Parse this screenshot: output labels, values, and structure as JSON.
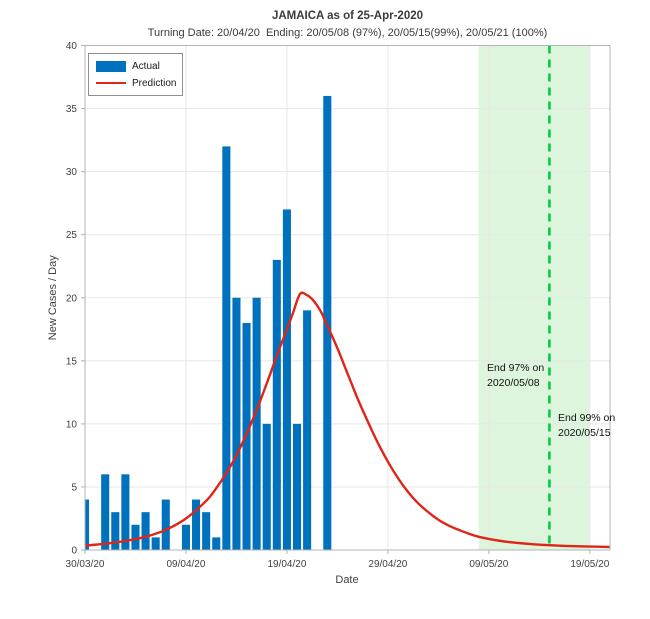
{
  "header": {
    "title": "JAMAICA as of 25-Apr-2020",
    "subtitle": "Turning Date: 20/04/20  Ending: 20/05/08 (97%), 20/05/15(99%), 20/05/21 (100%)"
  },
  "legend": {
    "items": [
      {
        "label": "Actual",
        "type": "bar",
        "color": "#0072BD"
      },
      {
        "label": "Prediction",
        "type": "line",
        "color": "#E02418"
      }
    ]
  },
  "axes": {
    "xlabel": "Date",
    "ylabel": "New Cases / Day"
  },
  "annotations": {
    "end97": {
      "line1": "End 97% on",
      "line2": "2020/05/08"
    },
    "end99": {
      "line1": "End 99% on",
      "line2": "2020/05/15"
    }
  },
  "chart_data": {
    "type": "bar+line",
    "title": "JAMAICA as of 25-Apr-2020",
    "subtitle": "Turning Date: 20/04/20  Ending: 20/05/08 (97%), 20/05/15(99%), 20/05/21 (100%)",
    "xlabel": "Date",
    "ylabel": "New Cases / Day",
    "ylim": [
      0,
      40
    ],
    "yticks": [
      0,
      5,
      10,
      15,
      20,
      25,
      30,
      35,
      40
    ],
    "x_axis_days_total": 52,
    "x_start_date": "30/03/20",
    "x_end_date": "21/05/20",
    "xticks": {
      "days": [
        0,
        10,
        20,
        30,
        40,
        50
      ],
      "labels": [
        "30/03/20",
        "09/04/20",
        "19/04/20",
        "29/04/20",
        "09/05/20",
        "19/05/20"
      ]
    },
    "grid": true,
    "grid_color": "#e7e7e7",
    "axis_box_color": "#b3b3b3",
    "tick_text_color": "#404040",
    "bars": {
      "name": "Actual",
      "color": "#0072BD",
      "bar_width_fraction": 0.8,
      "dates": [
        "30/03/20",
        "31/03/20",
        "01/04/20",
        "02/04/20",
        "03/04/20",
        "04/04/20",
        "05/04/20",
        "06/04/20",
        "07/04/20",
        "08/04/20",
        "09/04/20",
        "10/04/20",
        "11/04/20",
        "12/04/20",
        "13/04/20",
        "14/04/20",
        "15/04/20",
        "16/04/20",
        "17/04/20",
        "18/04/20",
        "19/04/20",
        "20/04/20",
        "21/04/20",
        "22/04/20",
        "23/04/20"
      ],
      "values": [
        4,
        0,
        6,
        3,
        6,
        2,
        3,
        1,
        4,
        0,
        2,
        4,
        3,
        1,
        32,
        20,
        18,
        20,
        10,
        23,
        27,
        10,
        19,
        0,
        36
      ]
    },
    "prediction": {
      "name": "Prediction",
      "color": "#E02418",
      "line_width": 2.4,
      "peak_value": 20.3,
      "peak_day": 21.3,
      "points": [
        [
          0,
          0.35
        ],
        [
          2,
          0.5
        ],
        [
          4,
          0.72
        ],
        [
          6,
          1.05
        ],
        [
          8,
          1.6
        ],
        [
          10,
          2.5
        ],
        [
          12,
          3.9
        ],
        [
          13,
          4.9
        ],
        [
          14,
          6.1
        ],
        [
          15,
          7.5
        ],
        [
          16,
          9.2
        ],
        [
          17,
          11.1
        ],
        [
          18,
          13.2
        ],
        [
          19,
          15.4
        ],
        [
          20,
          17.5
        ],
        [
          20.6,
          18.8
        ],
        [
          21.3,
          20.3
        ],
        [
          22,
          20.2
        ],
        [
          22.6,
          19.8
        ],
        [
          23.3,
          19.0
        ],
        [
          24,
          17.8
        ],
        [
          25,
          16.0
        ],
        [
          26,
          14.0
        ],
        [
          27,
          12.0
        ],
        [
          28,
          10.2
        ],
        [
          29,
          8.5
        ],
        [
          30,
          7.0
        ],
        [
          31,
          5.7
        ],
        [
          32,
          4.6
        ],
        [
          33,
          3.7
        ],
        [
          34,
          3.0
        ],
        [
          35,
          2.4
        ],
        [
          36,
          1.95
        ],
        [
          37,
          1.6
        ],
        [
          38,
          1.3
        ],
        [
          39,
          1.05
        ],
        [
          40,
          0.88
        ],
        [
          42,
          0.63
        ],
        [
          44,
          0.48
        ],
        [
          46,
          0.38
        ],
        [
          48,
          0.31
        ],
        [
          50,
          0.27
        ],
        [
          52,
          0.24
        ]
      ]
    },
    "shaded_region": {
      "start_day": 39,
      "end_day": 50,
      "start_date": "2020/05/08",
      "end_date": "2020/05/19",
      "color": "#DCF5DC"
    },
    "dashed_line": {
      "day": 46,
      "date": "2020/05/15",
      "color": "#00CC44",
      "dash": "8 6",
      "line_width": 2.6
    }
  }
}
